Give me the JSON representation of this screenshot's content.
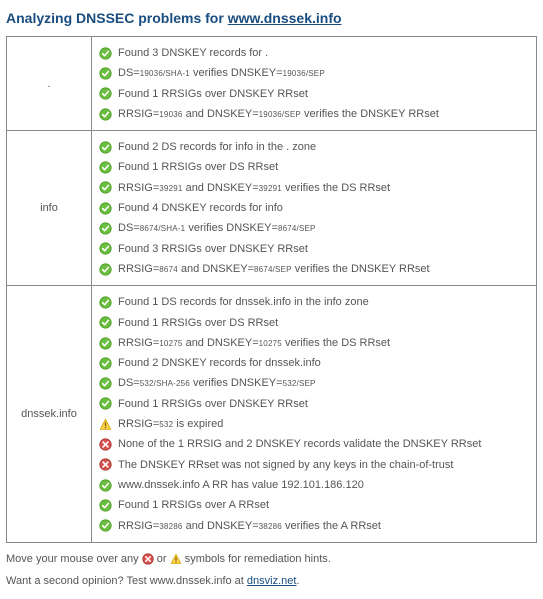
{
  "title_prefix": "Analyzing DNSSEC problems for ",
  "title_domain": "www.dnssek.info",
  "colors": {
    "heading": "#194c7f",
    "border": "#888888",
    "text": "#555555",
    "ok_fill": "#6abf40",
    "ok_stroke": "#4a9a20",
    "warn_fill": "#ffd24a",
    "warn_stroke": "#d0a000",
    "err_fill": "#d9534f",
    "err_stroke": "#a03030"
  },
  "zones": [
    {
      "name": ".",
      "lines": [
        {
          "icon": "ok",
          "segments": [
            "Found 3 DNSKEY records for ."
          ]
        },
        {
          "icon": "ok",
          "segments": [
            "DS=",
            {
              "sub": "19036/SHA-1"
            },
            " verifies DNSKEY=",
            {
              "sub": "19036/SEP"
            }
          ]
        },
        {
          "icon": "ok",
          "segments": [
            "Found 1 RRSIGs over DNSKEY RRset"
          ]
        },
        {
          "icon": "ok",
          "segments": [
            "RRSIG=",
            {
              "sub": "19036"
            },
            " and DNSKEY=",
            {
              "sub": "19036/SEP"
            },
            " verifies the DNSKEY RRset"
          ]
        }
      ]
    },
    {
      "name": "info",
      "lines": [
        {
          "icon": "ok",
          "segments": [
            "Found 2 DS records for info in the . zone"
          ]
        },
        {
          "icon": "ok",
          "segments": [
            "Found 1 RRSIGs over DS RRset"
          ]
        },
        {
          "icon": "ok",
          "segments": [
            "RRSIG=",
            {
              "sub": "39291"
            },
            " and DNSKEY=",
            {
              "sub": "39291"
            },
            " verifies the DS RRset"
          ]
        },
        {
          "icon": "ok",
          "segments": [
            "Found 4 DNSKEY records for info"
          ]
        },
        {
          "icon": "ok",
          "segments": [
            "DS=",
            {
              "sub": "8674/SHA-1"
            },
            " verifies DNSKEY=",
            {
              "sub": "8674/SEP"
            }
          ]
        },
        {
          "icon": "ok",
          "segments": [
            "Found 3 RRSIGs over DNSKEY RRset"
          ]
        },
        {
          "icon": "ok",
          "segments": [
            "RRSIG=",
            {
              "sub": "8674"
            },
            " and DNSKEY=",
            {
              "sub": "8674/SEP"
            },
            " verifies the DNSKEY RRset"
          ]
        }
      ]
    },
    {
      "name": "dnssek.info",
      "lines": [
        {
          "icon": "ok",
          "segments": [
            "Found 1 DS records for dnssek.info in the info zone"
          ]
        },
        {
          "icon": "ok",
          "segments": [
            "Found 1 RRSIGs over DS RRset"
          ]
        },
        {
          "icon": "ok",
          "segments": [
            "RRSIG=",
            {
              "sub": "10275"
            },
            " and DNSKEY=",
            {
              "sub": "10275"
            },
            " verifies the DS RRset"
          ]
        },
        {
          "icon": "ok",
          "segments": [
            "Found 2 DNSKEY records for dnssek.info"
          ]
        },
        {
          "icon": "ok",
          "segments": [
            "DS=",
            {
              "sub": "532/SHA-256"
            },
            " verifies DNSKEY=",
            {
              "sub": "532/SEP"
            }
          ]
        },
        {
          "icon": "ok",
          "segments": [
            "Found 1 RRSIGs over DNSKEY RRset"
          ]
        },
        {
          "icon": "warn",
          "segments": [
            "RRSIG=",
            {
              "sub": "532"
            },
            " is expired"
          ]
        },
        {
          "icon": "err",
          "segments": [
            "None of the 1 RRSIG and 2 DNSKEY records validate the DNSKEY RRset"
          ]
        },
        {
          "icon": "err",
          "segments": [
            "The DNSKEY RRset was not signed by any keys in the chain-of-trust"
          ]
        },
        {
          "icon": "ok",
          "segments": [
            "www.dnssek.info A RR has value 192.101.186.120"
          ]
        },
        {
          "icon": "ok",
          "segments": [
            "Found 1 RRSIGs over A RRset"
          ]
        },
        {
          "icon": "ok",
          "segments": [
            "RRSIG=",
            {
              "sub": "38286"
            },
            " and DNSKEY=",
            {
              "sub": "38286"
            },
            " verifies the A RRset"
          ]
        }
      ]
    }
  ],
  "footer_hint_pre": "Move your mouse over any ",
  "footer_hint_mid": " or ",
  "footer_hint_post": " symbols for remediation hints.",
  "footer_opinion_pre": "Want a second opinion? Test www.dnssek.info at ",
  "footer_opinion_link": "dnsviz.net",
  "footer_opinion_post": "."
}
